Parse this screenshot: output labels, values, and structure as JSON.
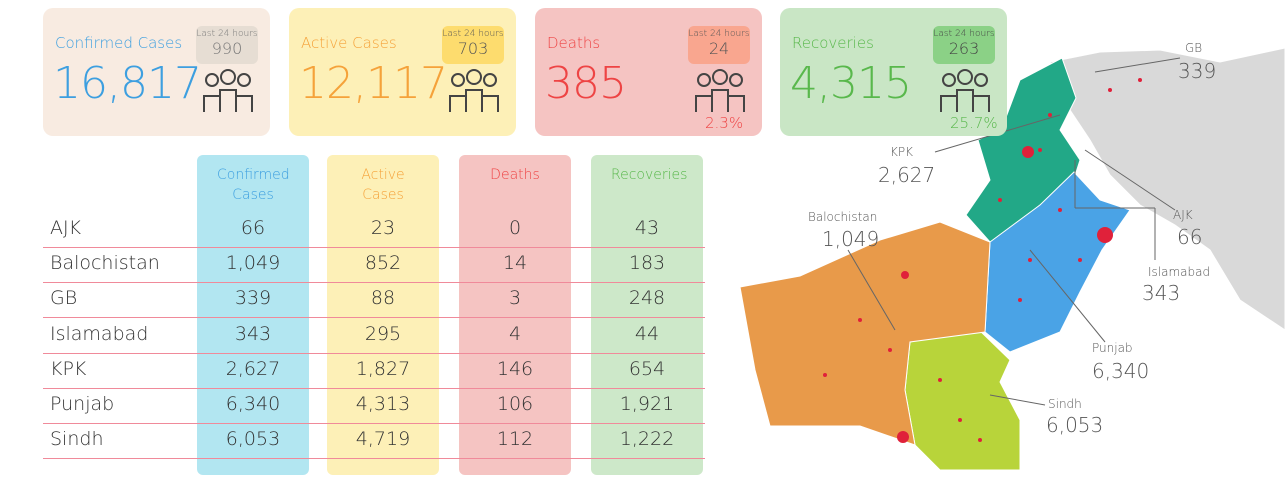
{
  "cards": [
    {
      "title": "Confirmed Cases",
      "value": "16,817",
      "badge_label": "Last 24 hours",
      "badge_value": "990"
    },
    {
      "title": "Active Cases",
      "value": "12,117",
      "badge_label": "Last 24 hours",
      "badge_value": "703"
    },
    {
      "title": "Deaths",
      "value": "385",
      "badge_label": "Last 24 hours",
      "badge_value": "24",
      "percent": "2.3%"
    },
    {
      "title": "Recoveries",
      "value": "4,315",
      "badge_label": "Last 24 hours",
      "badge_value": "263",
      "percent": "25.7%"
    }
  ],
  "table": {
    "headers": [
      "Confirmed Cases",
      "Active Cases",
      "Deaths",
      "Recoveries"
    ],
    "rows": [
      [
        "AJK",
        "66",
        "23",
        "0",
        "43"
      ],
      [
        "Balochistan",
        "1,049",
        "852",
        "14",
        "183"
      ],
      [
        "GB",
        "339",
        "88",
        "3",
        "248"
      ],
      [
        "Islamabad",
        "343",
        "295",
        "4",
        "44"
      ],
      [
        "KPK",
        "2,627",
        "1,827",
        "146",
        "654"
      ],
      [
        "Punjab",
        "6,340",
        "4,313",
        "106",
        "1,921"
      ],
      [
        "Sindh",
        "6,053",
        "4,719",
        "112",
        "1,222"
      ]
    ]
  },
  "map": {
    "regions": [
      {
        "name": "GB",
        "value": "339"
      },
      {
        "name": "KPK",
        "value": "2,627"
      },
      {
        "name": "Balochistan",
        "value": "1,049"
      },
      {
        "name": "AJK",
        "value": "66"
      },
      {
        "name": "Islamabad",
        "value": "343"
      },
      {
        "name": "Punjab",
        "value": "6,340"
      },
      {
        "name": "Sindh",
        "value": "6,053"
      }
    ]
  }
}
